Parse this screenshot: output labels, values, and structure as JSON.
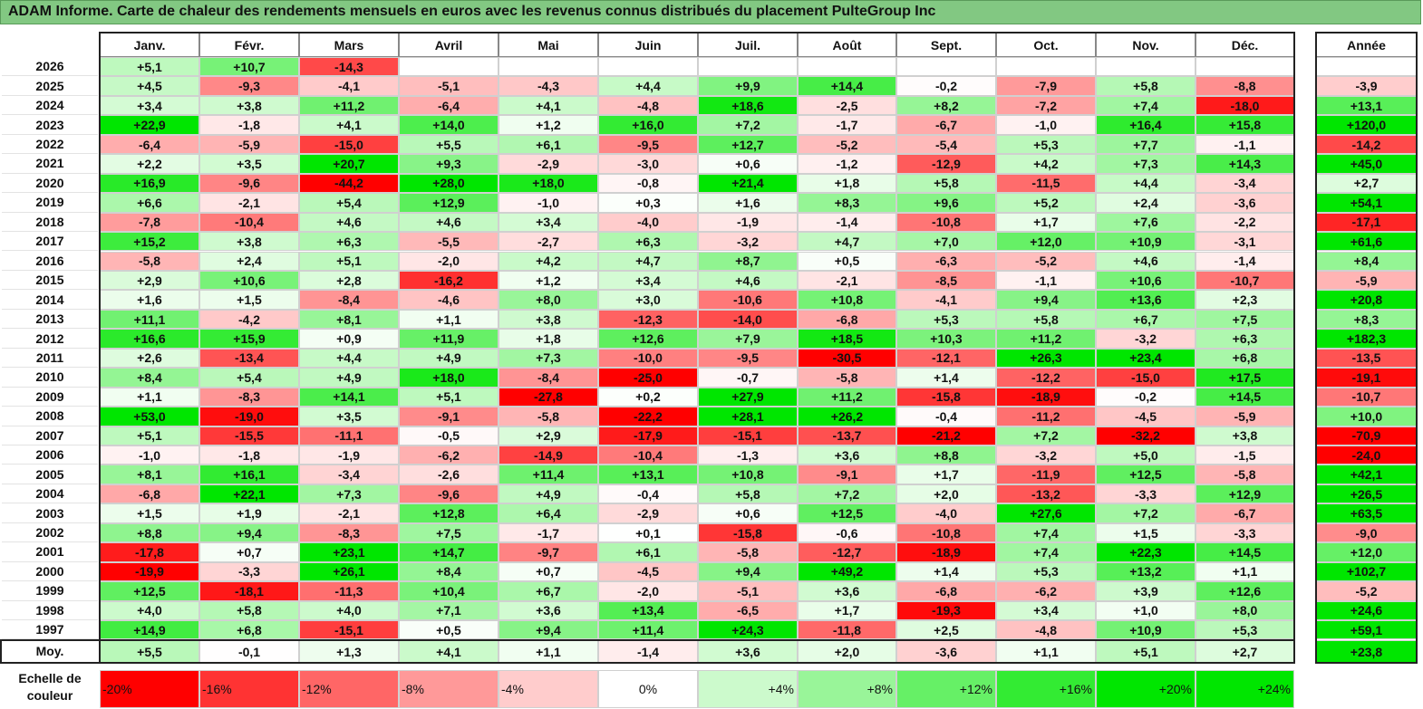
{
  "title": "ADAM Informe. Carte de chaleur des rendements mensuels en euros avec les revenus connus distribués du placement PulteGroup Inc",
  "chart_data": {
    "type": "heatmap",
    "title": "ADAM Informe. Carte de chaleur des rendements mensuels en euros avec les revenus connus distribués du placement PulteGroup Inc",
    "months": [
      "Janv.",
      "Févr.",
      "Mars",
      "Avril",
      "Mai",
      "Juin",
      "Juil.",
      "Août",
      "Sept.",
      "Oct.",
      "Nov.",
      "Déc."
    ],
    "year_header": "Année",
    "rows": [
      {
        "year": "2026",
        "months": [
          "+5,1",
          "+10,7",
          "-14,3",
          null,
          null,
          null,
          null,
          null,
          null,
          null,
          null,
          null
        ],
        "annual": null
      },
      {
        "year": "2025",
        "months": [
          "+4,5",
          "-9,3",
          "-4,1",
          "-5,1",
          "-4,3",
          "+4,4",
          "+9,9",
          "+14,4",
          "-0,2",
          "-7,9",
          "+5,8",
          "-8,8"
        ],
        "annual": "-3,9"
      },
      {
        "year": "2024",
        "months": [
          "+3,4",
          "+3,8",
          "+11,2",
          "-6,4",
          "+4,1",
          "-4,8",
          "+18,6",
          "-2,5",
          "+8,2",
          "-7,2",
          "+7,4",
          "-18,0"
        ],
        "annual": "+13,1"
      },
      {
        "year": "2023",
        "months": [
          "+22,9",
          "-1,8",
          "+4,1",
          "+14,0",
          "+1,2",
          "+16,0",
          "+7,2",
          "-1,7",
          "-6,7",
          "-1,0",
          "+16,4",
          "+15,8"
        ],
        "annual": "+120,0"
      },
      {
        "year": "2022",
        "months": [
          "-6,4",
          "-5,9",
          "-15,0",
          "+5,5",
          "+6,1",
          "-9,5",
          "+12,7",
          "-5,2",
          "-5,4",
          "+5,3",
          "+7,7",
          "-1,1"
        ],
        "annual": "-14,2"
      },
      {
        "year": "2021",
        "months": [
          "+2,2",
          "+3,5",
          "+20,7",
          "+9,3",
          "-2,9",
          "-3,0",
          "+0,6",
          "-1,2",
          "-12,9",
          "+4,2",
          "+7,3",
          "+14,3"
        ],
        "annual": "+45,0"
      },
      {
        "year": "2020",
        "months": [
          "+16,9",
          "-9,6",
          "-44,2",
          "+28,0",
          "+18,0",
          "-0,8",
          "+21,4",
          "+1,8",
          "+5,8",
          "-11,5",
          "+4,4",
          "-3,4"
        ],
        "annual": "+2,7"
      },
      {
        "year": "2019",
        "months": [
          "+6,6",
          "-2,1",
          "+5,4",
          "+12,9",
          "-1,0",
          "+0,3",
          "+1,6",
          "+8,3",
          "+9,6",
          "+5,2",
          "+2,4",
          "-3,6"
        ],
        "annual": "+54,1"
      },
      {
        "year": "2018",
        "months": [
          "-7,8",
          "-10,4",
          "+4,6",
          "+4,6",
          "+3,4",
          "-4,0",
          "-1,9",
          "-1,4",
          "-10,8",
          "+1,7",
          "+7,6",
          "-2,2"
        ],
        "annual": "-17,1"
      },
      {
        "year": "2017",
        "months": [
          "+15,2",
          "+3,8",
          "+6,3",
          "-5,5",
          "-2,7",
          "+6,3",
          "-3,2",
          "+4,7",
          "+7,0",
          "+12,0",
          "+10,9",
          "-3,1"
        ],
        "annual": "+61,6"
      },
      {
        "year": "2016",
        "months": [
          "-5,8",
          "+2,4",
          "+5,1",
          "-2,0",
          "+4,2",
          "+4,7",
          "+8,7",
          "+0,5",
          "-6,3",
          "-5,2",
          "+4,6",
          "-1,4"
        ],
        "annual": "+8,4"
      },
      {
        "year": "2015",
        "months": [
          "+2,9",
          "+10,6",
          "+2,8",
          "-16,2",
          "+1,2",
          "+3,4",
          "+4,6",
          "-2,1",
          "-8,5",
          "-1,1",
          "+10,6",
          "-10,7"
        ],
        "annual": "-5,9"
      },
      {
        "year": "2014",
        "months": [
          "+1,6",
          "+1,5",
          "-8,4",
          "-4,6",
          "+8,0",
          "+3,0",
          "-10,6",
          "+10,8",
          "-4,1",
          "+9,4",
          "+13,6",
          "+2,3"
        ],
        "annual": "+20,8"
      },
      {
        "year": "2013",
        "months": [
          "+11,1",
          "-4,2",
          "+8,1",
          "+1,1",
          "+3,8",
          "-12,3",
          "-14,0",
          "-6,8",
          "+5,3",
          "+5,8",
          "+6,7",
          "+7,5"
        ],
        "annual": "+8,3"
      },
      {
        "year": "2012",
        "months": [
          "+16,6",
          "+15,9",
          "+0,9",
          "+11,9",
          "+1,8",
          "+12,6",
          "+7,9",
          "+18,5",
          "+10,3",
          "+11,2",
          "-3,2",
          "+6,3"
        ],
        "annual": "+182,3"
      },
      {
        "year": "2011",
        "months": [
          "+2,6",
          "-13,4",
          "+4,4",
          "+4,9",
          "+7,3",
          "-10,0",
          "-9,5",
          "-30,5",
          "-12,1",
          "+26,3",
          "+23,4",
          "+6,8"
        ],
        "annual": "-13,5"
      },
      {
        "year": "2010",
        "months": [
          "+8,4",
          "+5,4",
          "+4,9",
          "+18,0",
          "-8,4",
          "-25,0",
          "-0,7",
          "-5,8",
          "+1,4",
          "-12,2",
          "-15,0",
          "+17,5"
        ],
        "annual": "-19,1"
      },
      {
        "year": "2009",
        "months": [
          "+1,1",
          "-8,3",
          "+14,1",
          "+5,1",
          "-27,8",
          "+0,2",
          "+27,9",
          "+11,2",
          "-15,8",
          "-18,9",
          "-0,2",
          "+14,5"
        ],
        "annual": "-10,7"
      },
      {
        "year": "2008",
        "months": [
          "+53,0",
          "-19,0",
          "+3,5",
          "-9,1",
          "-5,8",
          "-22,2",
          "+28,1",
          "+26,2",
          "-0,4",
          "-11,2",
          "-4,5",
          "-5,9"
        ],
        "annual": "+10,0"
      },
      {
        "year": "2007",
        "months": [
          "+5,1",
          "-15,5",
          "-11,1",
          "-0,5",
          "+2,9",
          "-17,9",
          "-15,1",
          "-13,7",
          "-21,2",
          "+7,2",
          "-32,2",
          "+3,8"
        ],
        "annual": "-70,9"
      },
      {
        "year": "2006",
        "months": [
          "-1,0",
          "-1,8",
          "-1,9",
          "-6,2",
          "-14,9",
          "-10,4",
          "-1,3",
          "+3,6",
          "+8,8",
          "-3,2",
          "+5,0",
          "-1,5"
        ],
        "annual": "-24,0"
      },
      {
        "year": "2005",
        "months": [
          "+8,1",
          "+16,1",
          "-3,4",
          "-2,6",
          "+11,4",
          "+13,1",
          "+10,8",
          "-9,1",
          "+1,7",
          "-11,9",
          "+12,5",
          "-5,8"
        ],
        "annual": "+42,1"
      },
      {
        "year": "2004",
        "months": [
          "-6,8",
          "+22,1",
          "+7,3",
          "-9,6",
          "+4,9",
          "-0,4",
          "+5,8",
          "+7,2",
          "+2,0",
          "-13,2",
          "-3,3",
          "+12,9"
        ],
        "annual": "+26,5"
      },
      {
        "year": "2003",
        "months": [
          "+1,5",
          "+1,9",
          "-2,1",
          "+12,8",
          "+6,4",
          "-2,9",
          "+0,6",
          "+12,5",
          "-4,0",
          "+27,6",
          "+7,2",
          "-6,7"
        ],
        "annual": "+63,5"
      },
      {
        "year": "2002",
        "months": [
          "+8,8",
          "+9,4",
          "-8,3",
          "+7,5",
          "-1,7",
          "+0,1",
          "-15,8",
          "-0,6",
          "-10,8",
          "+7,4",
          "+1,5",
          "-3,3"
        ],
        "annual": "-9,0"
      },
      {
        "year": "2001",
        "months": [
          "-17,8",
          "+0,7",
          "+23,1",
          "+14,7",
          "-9,7",
          "+6,1",
          "-5,8",
          "-12,7",
          "-18,9",
          "+7,4",
          "+22,3",
          "+14,5"
        ],
        "annual": "+12,0"
      },
      {
        "year": "2000",
        "months": [
          "-19,9",
          "-3,3",
          "+26,1",
          "+8,4",
          "+0,7",
          "-4,5",
          "+9,4",
          "+49,2",
          "+1,4",
          "+5,3",
          "+13,2",
          "+1,1"
        ],
        "annual": "+102,7"
      },
      {
        "year": "1999",
        "months": [
          "+12,5",
          "-18,1",
          "-11,3",
          "+10,4",
          "+6,7",
          "-2,0",
          "-5,1",
          "+3,6",
          "-6,8",
          "-6,2",
          "+3,9",
          "+12,6"
        ],
        "annual": "-5,2"
      },
      {
        "year": "1998",
        "months": [
          "+4,0",
          "+5,8",
          "+4,0",
          "+7,1",
          "+3,6",
          "+13,4",
          "-6,5",
          "+1,7",
          "-19,3",
          "+3,4",
          "+1,0",
          "+8,0"
        ],
        "annual": "+24,6"
      },
      {
        "year": "1997",
        "months": [
          "+14,9",
          "+6,8",
          "-15,1",
          "+0,5",
          "+9,4",
          "+11,4",
          "+24,3",
          "-11,8",
          "+2,5",
          "-4,8",
          "+10,9",
          "+5,3"
        ],
        "annual": "+59,1"
      }
    ],
    "average": {
      "label": "Moy.",
      "months": [
        "+5,5",
        "-0,1",
        "+1,3",
        "+4,1",
        "+1,1",
        "-1,4",
        "+3,6",
        "+2,0",
        "-3,6",
        "+1,1",
        "+5,1",
        "+2,7"
      ],
      "annual": "+23,8"
    },
    "color_scale": {
      "label_line1": "Echelle de",
      "label_line2": "couleur",
      "steps": [
        "-20%",
        "-16%",
        "-12%",
        "-8%",
        "-4%",
        "0%",
        "+4%",
        "+8%",
        "+12%",
        "+16%",
        "+20%",
        "+24%"
      ],
      "step_values": [
        -20,
        -16,
        -12,
        -8,
        -4,
        0,
        4,
        8,
        12,
        16,
        20,
        24
      ]
    },
    "colors": {
      "negative_max": "#ff0000",
      "neutral": "#ffffff",
      "positive_max": "#00e600",
      "title_bar": "#82c882"
    }
  }
}
